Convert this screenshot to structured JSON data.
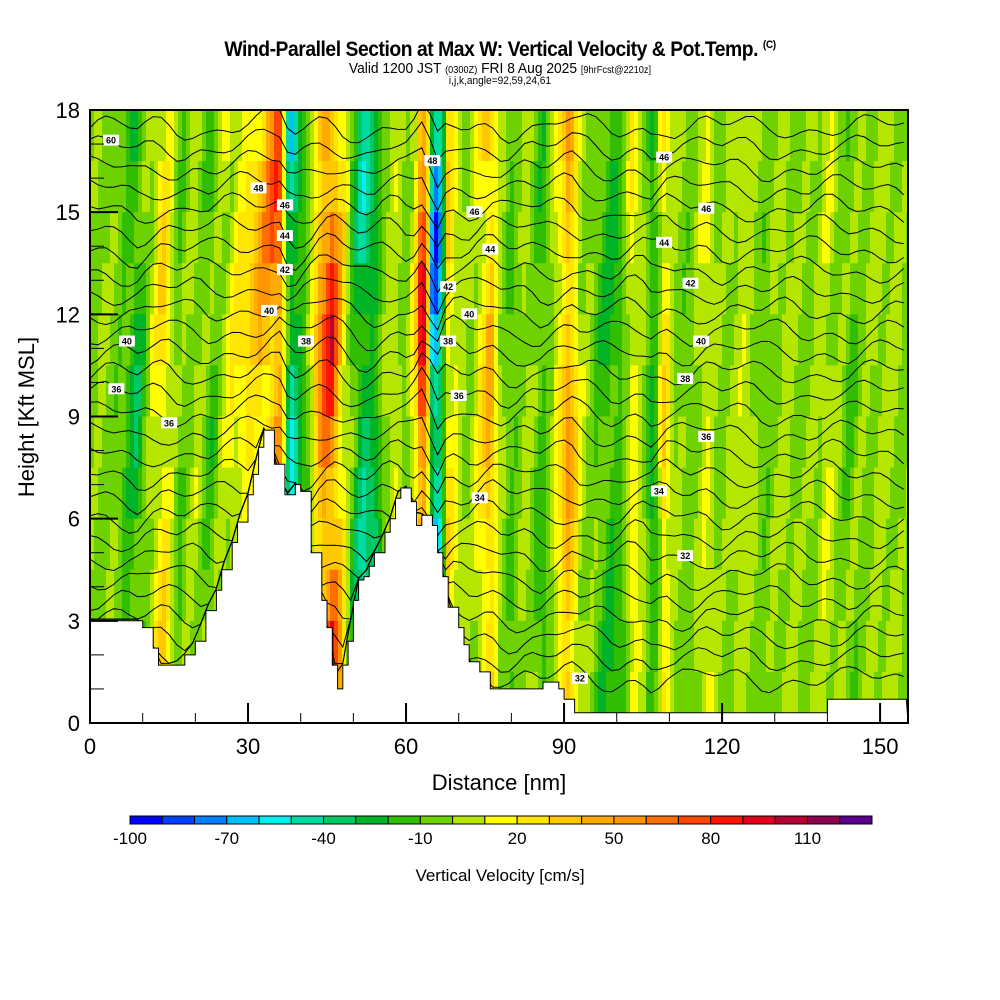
{
  "header": {
    "title": "Wind-Parallel Section at Max W: Vertical Velocity & Pot.Temp.",
    "copyright": "(C)",
    "valid_prefix": "Valid 1200 JST",
    "valid_utc": "(0300Z)",
    "valid_date": "FRI 8 Aug 2025",
    "forecast": "[9hrFcst@2210z]",
    "indices": "i,j,k,angle=92,59,24,61"
  },
  "chart_data": {
    "type": "heatmap",
    "title": "Wind-Parallel Section at Max W: Vertical Velocity & Pot.Temp.",
    "xlabel": "Distance [nm]",
    "ylabel": "Height [Kft MSL]",
    "xlim": [
      0,
      155.3
    ],
    "ylim": [
      0,
      18
    ],
    "xticks": [
      0,
      30,
      60,
      90,
      120,
      150
    ],
    "xtick_labels": [
      "0",
      "30",
      "60",
      "90",
      "120",
      "150"
    ],
    "yticks": [
      0,
      3,
      6,
      9,
      12,
      15,
      18
    ],
    "ytick_labels": [
      "0",
      "3",
      "6",
      "9",
      "12",
      "15",
      "18"
    ],
    "colorbar": {
      "title": "Vertical Velocity [cm/s]",
      "levels": [
        -100,
        -90,
        -80,
        -70,
        -60,
        -50,
        -40,
        -30,
        -20,
        -10,
        0,
        10,
        20,
        30,
        40,
        50,
        60,
        70,
        80,
        90,
        100,
        110,
        120
      ],
      "tick_labels": [
        "-100",
        "-70",
        "-40",
        "-10",
        "20",
        "50",
        "80",
        "110"
      ],
      "colors": [
        "#0000ff",
        "#0040ff",
        "#0080ff",
        "#00c0ff",
        "#00f0f0",
        "#00dca0",
        "#00c864",
        "#00b428",
        "#32be00",
        "#6ed200",
        "#b4e600",
        "#ffff00",
        "#ffe600",
        "#ffc800",
        "#ffaa00",
        "#ff9600",
        "#ff6e00",
        "#ff4600",
        "#ff1400",
        "#e6001e",
        "#b40032",
        "#8c0050",
        "#5a008c"
      ]
    },
    "vertical_velocity_columns": {
      "description_units": "cm/s, dominant value along vertical bands (x in nm)",
      "x": [
        0,
        3,
        6,
        9,
        12,
        14,
        17,
        20,
        23,
        26,
        29,
        32,
        34,
        36,
        38,
        40,
        42,
        44,
        46,
        48,
        50,
        52,
        54,
        56,
        58,
        60,
        62,
        63,
        64,
        65,
        66,
        67,
        68,
        70,
        72,
        74,
        76,
        78,
        80,
        83,
        86,
        89,
        91,
        93,
        96,
        99,
        101,
        103,
        105,
        107,
        109,
        111,
        114,
        117,
        120,
        124,
        128,
        132,
        136,
        140,
        144,
        148,
        152,
        155
      ],
      "w": [
        -5,
        0,
        -10,
        -30,
        10,
        30,
        -10,
        5,
        -15,
        10,
        25,
        40,
        60,
        80,
        -60,
        -30,
        5,
        70,
        90,
        30,
        -20,
        -45,
        -35,
        0,
        10,
        -10,
        30,
        110,
        60,
        -70,
        -90,
        -40,
        30,
        10,
        -5,
        20,
        50,
        0,
        -15,
        5,
        -20,
        20,
        60,
        10,
        -10,
        -25,
        -15,
        20,
        5,
        -30,
        30,
        0,
        -10,
        15,
        -5,
        10,
        -10,
        5,
        -5,
        10,
        -10,
        0,
        5,
        -5
      ]
    },
    "potential_temperature_contours": {
      "units": "C",
      "labels": [
        {
          "value": "60",
          "x": 4,
          "y": 17.1
        },
        {
          "value": "48",
          "x": 32,
          "y": 15.7
        },
        {
          "value": "46",
          "x": 37,
          "y": 15.2
        },
        {
          "value": "44",
          "x": 37,
          "y": 14.3
        },
        {
          "value": "42",
          "x": 37,
          "y": 13.3
        },
        {
          "value": "40",
          "x": 34,
          "y": 12.1
        },
        {
          "value": "38",
          "x": 41,
          "y": 11.2
        },
        {
          "value": "40",
          "x": 7,
          "y": 11.2
        },
        {
          "value": "36",
          "x": 5,
          "y": 9.8
        },
        {
          "value": "36",
          "x": 15,
          "y": 8.8
        },
        {
          "value": "48",
          "x": 65,
          "y": 16.5
        },
        {
          "value": "46",
          "x": 73,
          "y": 15.0
        },
        {
          "value": "44",
          "x": 76,
          "y": 13.9
        },
        {
          "value": "42",
          "x": 68,
          "y": 12.8
        },
        {
          "value": "40",
          "x": 72,
          "y": 12.0
        },
        {
          "value": "38",
          "x": 68,
          "y": 11.2
        },
        {
          "value": "36",
          "x": 70,
          "y": 9.6
        },
        {
          "value": "34",
          "x": 74,
          "y": 6.6
        },
        {
          "value": "46",
          "x": 109,
          "y": 16.6
        },
        {
          "value": "46",
          "x": 117,
          "y": 15.1
        },
        {
          "value": "44",
          "x": 109,
          "y": 14.1
        },
        {
          "value": "42",
          "x": 114,
          "y": 12.9
        },
        {
          "value": "40",
          "x": 116,
          "y": 11.2
        },
        {
          "value": "38",
          "x": 113,
          "y": 10.1
        },
        {
          "value": "36",
          "x": 117,
          "y": 8.4
        },
        {
          "value": "34",
          "x": 108,
          "y": 6.8
        },
        {
          "value": "32",
          "x": 113,
          "y": 4.9
        },
        {
          "value": "32",
          "x": 93,
          "y": 1.3
        }
      ]
    },
    "terrain_kft": {
      "x": [
        0,
        3,
        6,
        9,
        10,
        12,
        13,
        16,
        18,
        20,
        22,
        24,
        25,
        27,
        28,
        30,
        31,
        32,
        33,
        34,
        35,
        37,
        38,
        39,
        40,
        42,
        44,
        45,
        46,
        47,
        48,
        49,
        50,
        51,
        52,
        53,
        54,
        56,
        57,
        58,
        59,
        60,
        61,
        62,
        63,
        65,
        66,
        67,
        68,
        70,
        71,
        72,
        74,
        76,
        77,
        78,
        80,
        82,
        86,
        89,
        90,
        92,
        95,
        100,
        105,
        110,
        120,
        130,
        138,
        140,
        145,
        150,
        155
      ],
      "h": [
        3.0,
        3.0,
        3.0,
        3.0,
        2.8,
        2.2,
        1.7,
        1.7,
        2.0,
        2.4,
        3.3,
        3.9,
        4.5,
        5.3,
        5.9,
        6.7,
        7.3,
        8.1,
        8.6,
        8.6,
        7.6,
        6.7,
        6.7,
        7.0,
        6.8,
        5.0,
        3.6,
        2.8,
        1.7,
        1.0,
        1.7,
        2.4,
        3.6,
        4.2,
        4.3,
        4.6,
        5.0,
        5.6,
        6.0,
        6.6,
        6.9,
        6.9,
        6.5,
        5.8,
        6.1,
        5.8,
        5.0,
        4.3,
        3.4,
        2.8,
        2.3,
        1.8,
        1.5,
        1.0,
        1.0,
        1.0,
        1.0,
        1.0,
        1.2,
        1.0,
        0.7,
        0.3,
        0.3,
        0.3,
        0.3,
        0.3,
        0.3,
        0.3,
        0.3,
        0.7,
        0.7,
        0.7,
        0.7
      ]
    }
  }
}
